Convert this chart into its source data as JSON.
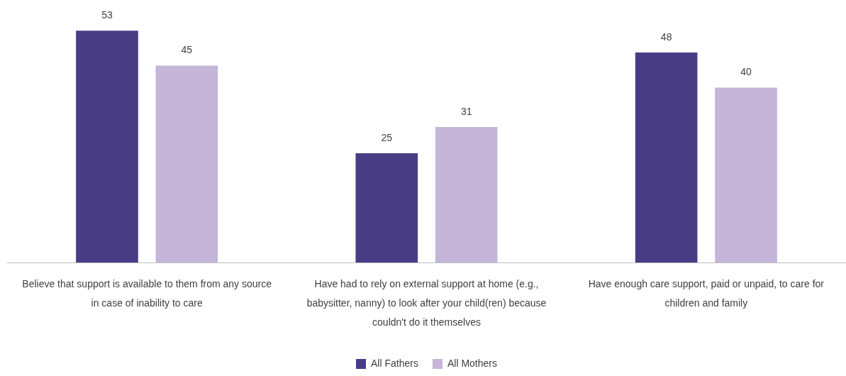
{
  "chart_data": {
    "type": "bar",
    "categories": [
      "Believe that support is available to them from any source in case of inability to care",
      "Have had to rely on external support at home (e.g., babysitter, nanny) to look after your child(ren) because couldn't do it themselves",
      "Have enough care support, paid or unpaid, to care for children and family"
    ],
    "series": [
      {
        "name": "All Fathers",
        "color": "#483d85",
        "values": [
          53,
          25,
          48
        ]
      },
      {
        "name": "All Mothers",
        "color": "#c4b5d9",
        "values": [
          45,
          31,
          40
        ]
      }
    ],
    "data_labels": true,
    "legend": "bottom",
    "tick_labels": "x",
    "grid": false
  }
}
